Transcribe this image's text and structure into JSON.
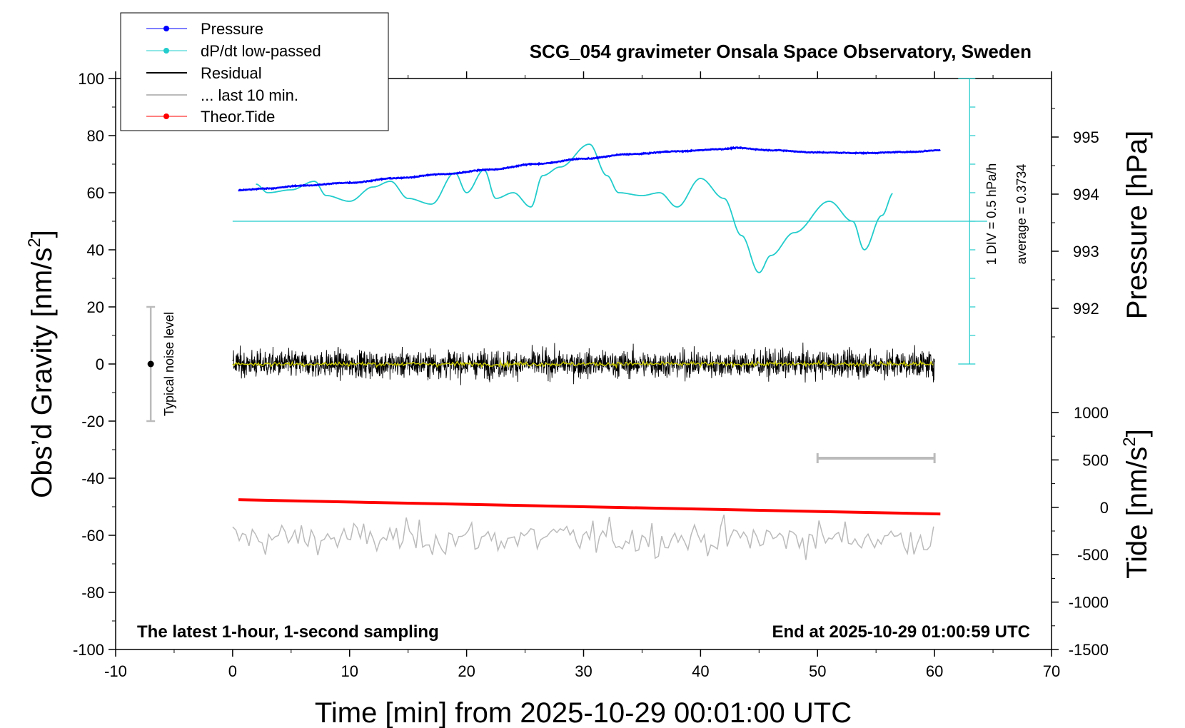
{
  "chart_data": {
    "type": "line",
    "title": "SCG_054 gravimeter Onsala Space Observatory, Sweden",
    "xlabel": "Time [min] from 2025-10-29 00:01:00 UTC",
    "ylabel_left_prefix": "Obs’d Gravity [nm/s",
    "ylabel_left_sup": "2",
    "ylabel_left_suffix": "]",
    "ylabel_right_top": "Pressure [hPa]",
    "ylabel_right_bottom_prefix": "Tide [nm/s",
    "ylabel_right_bottom_sup": "2",
    "ylabel_right_bottom_suffix": "]",
    "xlim": [
      -10,
      70
    ],
    "ylim_left": [
      -100,
      100
    ],
    "ylim_pressure": [
      991,
      996
    ],
    "ylim_tide": [
      -1500,
      1500
    ],
    "x_ticks": [
      "-10",
      "0",
      "10",
      "20",
      "30",
      "40",
      "50",
      "60",
      "70"
    ],
    "y_ticks_left": [
      "100",
      "80",
      "60",
      "40",
      "20",
      "0",
      "-20",
      "-40",
      "-60",
      "-80",
      "-100"
    ],
    "y_ticks_pressure": [
      "995",
      "994",
      "993",
      "992"
    ],
    "y_ticks_tide": [
      "1000",
      "500",
      "0",
      "-500",
      "-1000",
      "-1500"
    ],
    "legend": {
      "placement": "top-left",
      "entries": [
        "Pressure",
        "dP/dt low-passed",
        "Residual",
        "... last 10 min.",
        "Theor.Tide"
      ]
    },
    "annotations": {
      "bottom_left": "The latest 1-hour, 1-second sampling",
      "bottom_right": "End at 2025-10-29 01:00:59 UTC",
      "noise_label": "Typical noise level",
      "div_label": "1 DIV = 0.5 hPa/h",
      "average_label": "average = 0.3734"
    },
    "noise_bar": {
      "x": -7,
      "y_center": 0,
      "y_half_range": 20
    },
    "ten_min_bar": {
      "x_start": 50,
      "x_end": 60,
      "y": -33
    },
    "dpdt_scale": {
      "x": 63,
      "y_from": 0,
      "y_to": 100,
      "average_y": 50
    },
    "colors": {
      "pressure": "#0000ff",
      "dpdt": "#22cccc",
      "residual": "#000000",
      "residual_smooth": "#cccc00",
      "last10": "#bbbbbb",
      "tide": "#ff0000",
      "bar": "#bbbbbb"
    },
    "series": [
      {
        "name": "Pressure",
        "axis": "pressure_hPa",
        "x": [
          0.5,
          3,
          6,
          10,
          14,
          18,
          22,
          26,
          30,
          34,
          38,
          42,
          43,
          46,
          50,
          54,
          58,
          60.5
        ],
        "y": [
          994.07,
          994.1,
          994.15,
          994.2,
          994.28,
          994.35,
          994.43,
          994.53,
          994.62,
          994.7,
          994.75,
          994.79,
          994.81,
          994.77,
          994.73,
          994.72,
          994.74,
          994.77
        ]
      },
      {
        "name": "dP/dt low-passed",
        "axis": "left",
        "x": [
          2,
          3,
          5,
          7,
          8,
          10,
          12,
          13.5,
          15,
          17,
          19,
          20,
          21.5,
          22.5,
          24,
          25.5,
          26.5,
          28,
          30.5,
          32,
          33,
          35,
          36.5,
          38,
          40,
          42,
          43.5,
          45,
          46,
          48,
          51,
          53,
          54,
          55.5,
          56.5
        ],
        "y": [
          63,
          60,
          61,
          64,
          59,
          57,
          62,
          64,
          58,
          56,
          67,
          60,
          68,
          58,
          60,
          55,
          66,
          69,
          77,
          66,
          60,
          59,
          60,
          55,
          65,
          58,
          45,
          32,
          38,
          46,
          57,
          50,
          40,
          52,
          60
        ]
      },
      {
        "name": "Residual",
        "axis": "left",
        "x": [
          0,
          60
        ],
        "y_range": [
          -15,
          16
        ],
        "y_mean": 0
      },
      {
        "name": "... last 10 min.",
        "axis": "left",
        "x": [
          0,
          60
        ],
        "y_range": [
          -76,
          -50
        ],
        "y_mean": -61
      },
      {
        "name": "Theor.Tide",
        "axis": "tide_nm_s2",
        "x": [
          0.5,
          60.5
        ],
        "y": [
          80,
          -70
        ]
      }
    ]
  }
}
